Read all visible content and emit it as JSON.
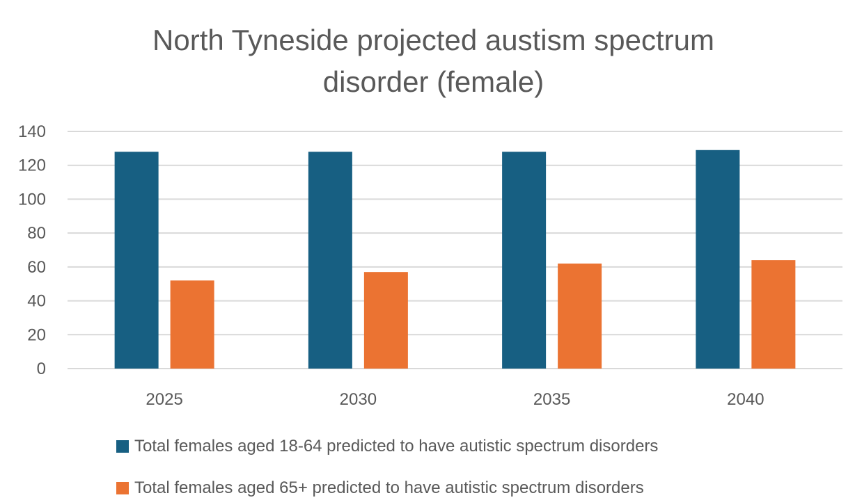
{
  "chart_data": {
    "type": "bar",
    "title": "North Tyneside projected austism spectrum disorder (female)",
    "title_lines": [
      "North Tyneside projected austism spectrum",
      "disorder (female)"
    ],
    "categories": [
      "2025",
      "2030",
      "2035",
      "2040"
    ],
    "series": [
      {
        "name": "Total females aged 18-64 predicted to have autistic spectrum disorders",
        "values": [
          128,
          128,
          128,
          129
        ],
        "color": "#175f82"
      },
      {
        "name": "Total females aged 65+ predicted to have autistic spectrum disorders",
        "values": [
          52,
          57,
          62,
          64
        ],
        "color": "#eb7332"
      }
    ],
    "ylim": [
      0,
      140
    ],
    "yticks": [
      "0",
      "20",
      "40",
      "60",
      "80",
      "100",
      "120",
      "140"
    ],
    "grid": true,
    "legend_position": "bottom",
    "xlabel": "",
    "ylabel": ""
  }
}
